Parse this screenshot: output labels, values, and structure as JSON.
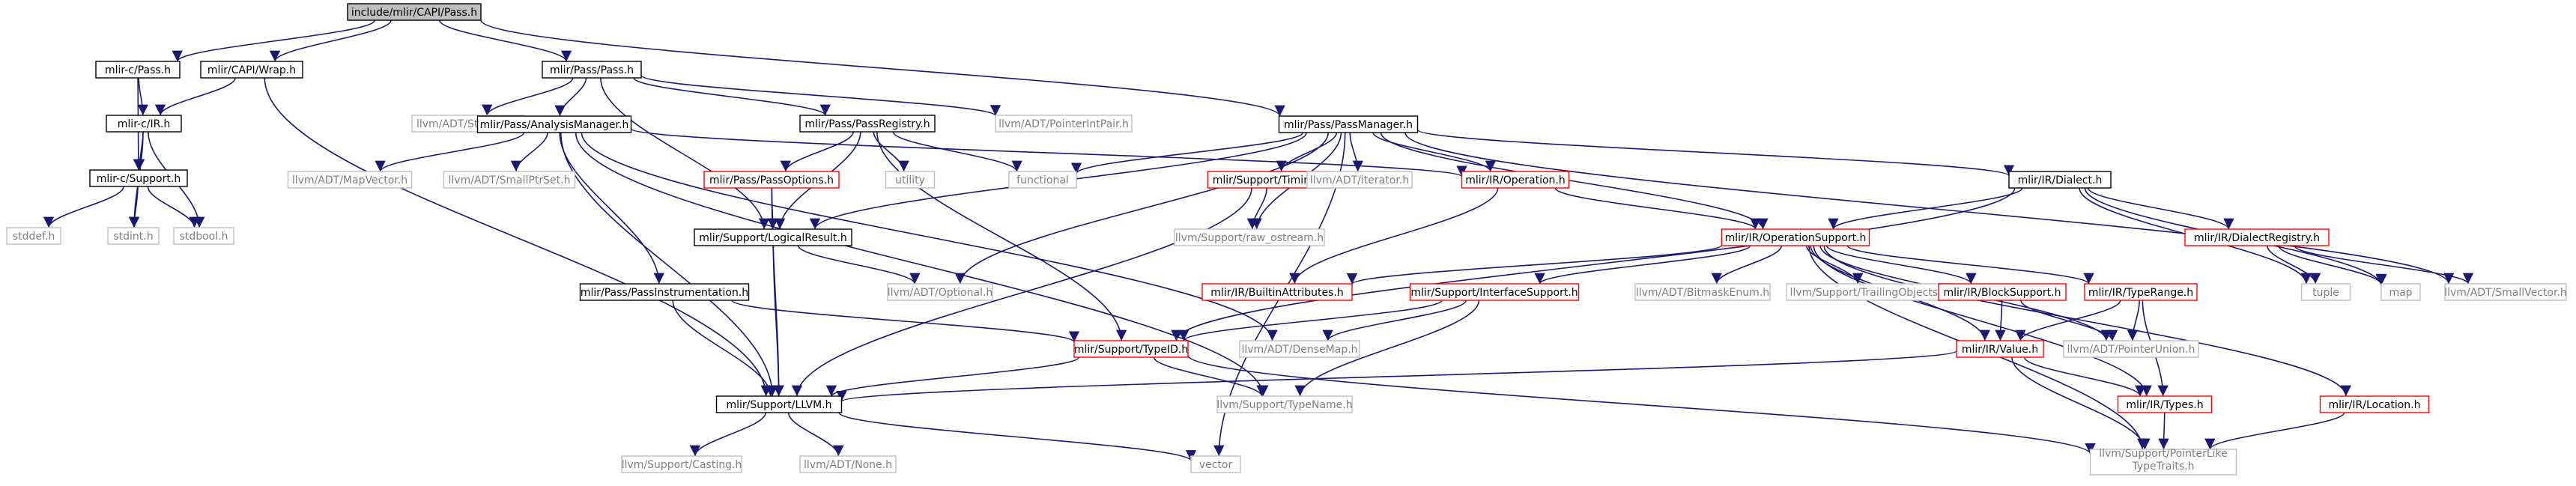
{
  "colors": {
    "edge": "#191970",
    "header_fill": "#bfbfbf",
    "header_stroke": "#000000",
    "local_stroke": "#000000",
    "incomplete_stroke": "#ff0000",
    "external_stroke": "#bfbfbf",
    "external_text": "#7f7f7f",
    "text": "#000000"
  },
  "nodes": [
    {
      "id": "capi_pass",
      "label": "include/mlir/CAPI/Pass.h",
      "kind": "header"
    },
    {
      "id": "c_pass",
      "label": "mlir-c/Pass.h",
      "kind": "local"
    },
    {
      "id": "capi_wrap",
      "label": "mlir/CAPI/Wrap.h",
      "kind": "local"
    },
    {
      "id": "pass_pass",
      "label": "mlir/Pass/Pass.h",
      "kind": "local"
    },
    {
      "id": "pass_manager",
      "label": "mlir/Pass/PassManager.h",
      "kind": "local"
    },
    {
      "id": "c_ir",
      "label": "mlir-c/IR.h",
      "kind": "local"
    },
    {
      "id": "c_support",
      "label": "mlir-c/Support.h",
      "kind": "local"
    },
    {
      "id": "stddef",
      "label": "stddef.h",
      "kind": "external"
    },
    {
      "id": "stdint",
      "label": "stdint.h",
      "kind": "external"
    },
    {
      "id": "stdbool",
      "label": "stdbool.h",
      "kind": "external"
    },
    {
      "id": "statistic",
      "label": "llvm/ADT/Statistic.h",
      "kind": "external"
    },
    {
      "id": "analysis_manager",
      "label": "mlir/Pass/AnalysisManager.h",
      "kind": "local"
    },
    {
      "id": "pass_registry",
      "label": "mlir/Pass/PassRegistry.h",
      "kind": "local"
    },
    {
      "id": "pointer_int_pair",
      "label": "llvm/ADT/PointerIntPair.h",
      "kind": "external"
    },
    {
      "id": "map_vector",
      "label": "llvm/ADT/MapVector.h",
      "kind": "external"
    },
    {
      "id": "small_ptr_set",
      "label": "llvm/ADT/SmallPtrSet.h",
      "kind": "external"
    },
    {
      "id": "pass_options",
      "label": "mlir/Pass/PassOptions.h",
      "kind": "incomplete"
    },
    {
      "id": "utility",
      "label": "utility",
      "kind": "external"
    },
    {
      "id": "functional",
      "label": "functional",
      "kind": "external"
    },
    {
      "id": "timing",
      "label": "mlir/Support/Timing.h",
      "kind": "incomplete"
    },
    {
      "id": "iterator",
      "label": "llvm/ADT/iterator.h",
      "kind": "external"
    },
    {
      "id": "operation",
      "label": "mlir/IR/Operation.h",
      "kind": "incomplete"
    },
    {
      "id": "dialect",
      "label": "mlir/IR/Dialect.h",
      "kind": "local"
    },
    {
      "id": "logical_result",
      "label": "mlir/Support/LogicalResult.h",
      "kind": "local"
    },
    {
      "id": "raw_ostream",
      "label": "llvm/Support/raw_ostream.h",
      "kind": "external"
    },
    {
      "id": "operation_support",
      "label": "mlir/IR/OperationSupport.h",
      "kind": "incomplete"
    },
    {
      "id": "dialect_registry",
      "label": "mlir/IR/DialectRegistry.h",
      "kind": "incomplete"
    },
    {
      "id": "optional",
      "label": "llvm/ADT/Optional.h",
      "kind": "external"
    },
    {
      "id": "builtin_attributes",
      "label": "mlir/IR/BuiltinAttributes.h",
      "kind": "incomplete"
    },
    {
      "id": "interface_support",
      "label": "mlir/Support/InterfaceSupport.h",
      "kind": "incomplete"
    },
    {
      "id": "bitmask_enum",
      "label": "llvm/ADT/BitmaskEnum.h",
      "kind": "external"
    },
    {
      "id": "trailing_objects",
      "label": "llvm/Support/TrailingObjects.h",
      "kind": "external"
    },
    {
      "id": "block_support",
      "label": "mlir/IR/BlockSupport.h",
      "kind": "incomplete"
    },
    {
      "id": "type_range",
      "label": "mlir/IR/TypeRange.h",
      "kind": "incomplete"
    },
    {
      "id": "tuple",
      "label": "tuple",
      "kind": "external"
    },
    {
      "id": "map",
      "label": "map",
      "kind": "external"
    },
    {
      "id": "small_vector",
      "label": "llvm/ADT/SmallVector.h",
      "kind": "external"
    },
    {
      "id": "pass_instrumentation",
      "label": "mlir/Pass/PassInstrumentation.h",
      "kind": "local"
    },
    {
      "id": "dense_map",
      "label": "llvm/ADT/DenseMap.h",
      "kind": "external"
    },
    {
      "id": "type_id",
      "label": "mlir/Support/TypeID.h",
      "kind": "incomplete"
    },
    {
      "id": "value",
      "label": "mlir/IR/Value.h",
      "kind": "incomplete"
    },
    {
      "id": "pointer_union",
      "label": "llvm/ADT/PointerUnion.h",
      "kind": "external"
    },
    {
      "id": "location",
      "label": "mlir/IR/Location.h",
      "kind": "incomplete"
    },
    {
      "id": "support_llvm",
      "label": "mlir/Support/LLVM.h",
      "kind": "local"
    },
    {
      "id": "type_name",
      "label": "llvm/Support/TypeName.h",
      "kind": "external"
    },
    {
      "id": "types",
      "label": "mlir/IR/Types.h",
      "kind": "incomplete"
    },
    {
      "id": "casting",
      "label": "llvm/Support/Casting.h",
      "kind": "external"
    },
    {
      "id": "none",
      "label": "llvm/ADT/None.h",
      "kind": "external"
    },
    {
      "id": "vector",
      "label": "vector",
      "kind": "external"
    },
    {
      "id": "pointer_like",
      "label": "llvm/Support/PointerLike",
      "label2": "TypeTraits.h",
      "kind": "external"
    }
  ],
  "edges": [
    [
      "capi_pass",
      "c_pass"
    ],
    [
      "capi_pass",
      "capi_wrap"
    ],
    [
      "capi_pass",
      "pass_pass"
    ],
    [
      "capi_pass",
      "pass_manager"
    ],
    [
      "c_pass",
      "c_ir"
    ],
    [
      "c_pass",
      "c_support"
    ],
    [
      "capi_wrap",
      "c_ir"
    ],
    [
      "capi_wrap",
      "support_llvm"
    ],
    [
      "c_ir",
      "c_support"
    ],
    [
      "c_ir",
      "stdint"
    ],
    [
      "c_ir",
      "stdbool"
    ],
    [
      "c_support",
      "stddef"
    ],
    [
      "c_support",
      "stdint"
    ],
    [
      "c_support",
      "stdbool"
    ],
    [
      "pass_pass",
      "statistic"
    ],
    [
      "pass_pass",
      "analysis_manager"
    ],
    [
      "pass_pass",
      "pass_registry"
    ],
    [
      "pass_pass",
      "pointer_int_pair"
    ],
    [
      "pass_pass",
      "logical_result"
    ],
    [
      "analysis_manager",
      "map_vector"
    ],
    [
      "analysis_manager",
      "small_ptr_set"
    ],
    [
      "analysis_manager",
      "operation"
    ],
    [
      "analysis_manager",
      "pass_instrumentation"
    ],
    [
      "analysis_manager",
      "support_llvm"
    ],
    [
      "analysis_manager",
      "type_name"
    ],
    [
      "analysis_manager",
      "dense_map"
    ],
    [
      "pass_registry",
      "pass_options"
    ],
    [
      "pass_registry",
      "utility"
    ],
    [
      "pass_registry",
      "functional"
    ],
    [
      "pass_registry",
      "type_id"
    ],
    [
      "pass_registry",
      "logical_result"
    ],
    [
      "pass_options",
      "logical_result"
    ],
    [
      "pass_options",
      "support_llvm"
    ],
    [
      "pass_manager",
      "functional"
    ],
    [
      "pass_manager",
      "timing"
    ],
    [
      "pass_manager",
      "iterator"
    ],
    [
      "pass_manager",
      "operation"
    ],
    [
      "pass_manager",
      "dialect"
    ],
    [
      "pass_manager",
      "logical_result"
    ],
    [
      "pass_manager",
      "optional"
    ],
    [
      "pass_manager",
      "raw_ostream"
    ],
    [
      "pass_manager",
      "small_vector"
    ],
    [
      "pass_manager",
      "vector"
    ],
    [
      "pass_manager",
      "operation_support"
    ],
    [
      "timing",
      "raw_ostream"
    ],
    [
      "timing",
      "support_llvm"
    ],
    [
      "operation",
      "operation_support"
    ],
    [
      "operation",
      "builtin_attributes"
    ],
    [
      "dialect",
      "operation_support"
    ],
    [
      "dialect",
      "dialect_registry"
    ],
    [
      "dialect",
      "type_id"
    ],
    [
      "dialect",
      "tuple"
    ],
    [
      "dialect",
      "map"
    ],
    [
      "dialect_registry",
      "tuple"
    ],
    [
      "dialect_registry",
      "map"
    ],
    [
      "dialect_registry",
      "small_vector"
    ],
    [
      "logical_result",
      "optional"
    ],
    [
      "logical_result",
      "support_llvm"
    ],
    [
      "operation_support",
      "builtin_attributes"
    ],
    [
      "operation_support",
      "interface_support"
    ],
    [
      "operation_support",
      "bitmask_enum"
    ],
    [
      "operation_support",
      "trailing_objects"
    ],
    [
      "operation_support",
      "block_support"
    ],
    [
      "operation_support",
      "type_range"
    ],
    [
      "operation_support",
      "location"
    ],
    [
      "operation_support",
      "pointer_union"
    ],
    [
      "operation_support",
      "value"
    ],
    [
      "operation_support",
      "types"
    ],
    [
      "operation_support",
      "pointer_like"
    ],
    [
      "interface_support",
      "type_id"
    ],
    [
      "interface_support",
      "dense_map"
    ],
    [
      "interface_support",
      "type_name"
    ],
    [
      "pass_instrumentation",
      "type_id"
    ],
    [
      "pass_instrumentation",
      "support_llvm"
    ],
    [
      "block_support",
      "value"
    ],
    [
      "block_support",
      "pointer_union"
    ],
    [
      "type_range",
      "value"
    ],
    [
      "type_range",
      "pointer_union"
    ],
    [
      "type_range",
      "types"
    ],
    [
      "type_id",
      "support_llvm"
    ],
    [
      "type_id",
      "type_name"
    ],
    [
      "type_id",
      "pointer_like"
    ],
    [
      "value",
      "types"
    ],
    [
      "value",
      "pointer_like"
    ],
    [
      "value",
      "support_llvm"
    ],
    [
      "types",
      "pointer_like"
    ],
    [
      "location",
      "pointer_like"
    ],
    [
      "support_llvm",
      "casting"
    ],
    [
      "support_llvm",
      "none"
    ],
    [
      "support_llvm",
      "vector"
    ]
  ]
}
